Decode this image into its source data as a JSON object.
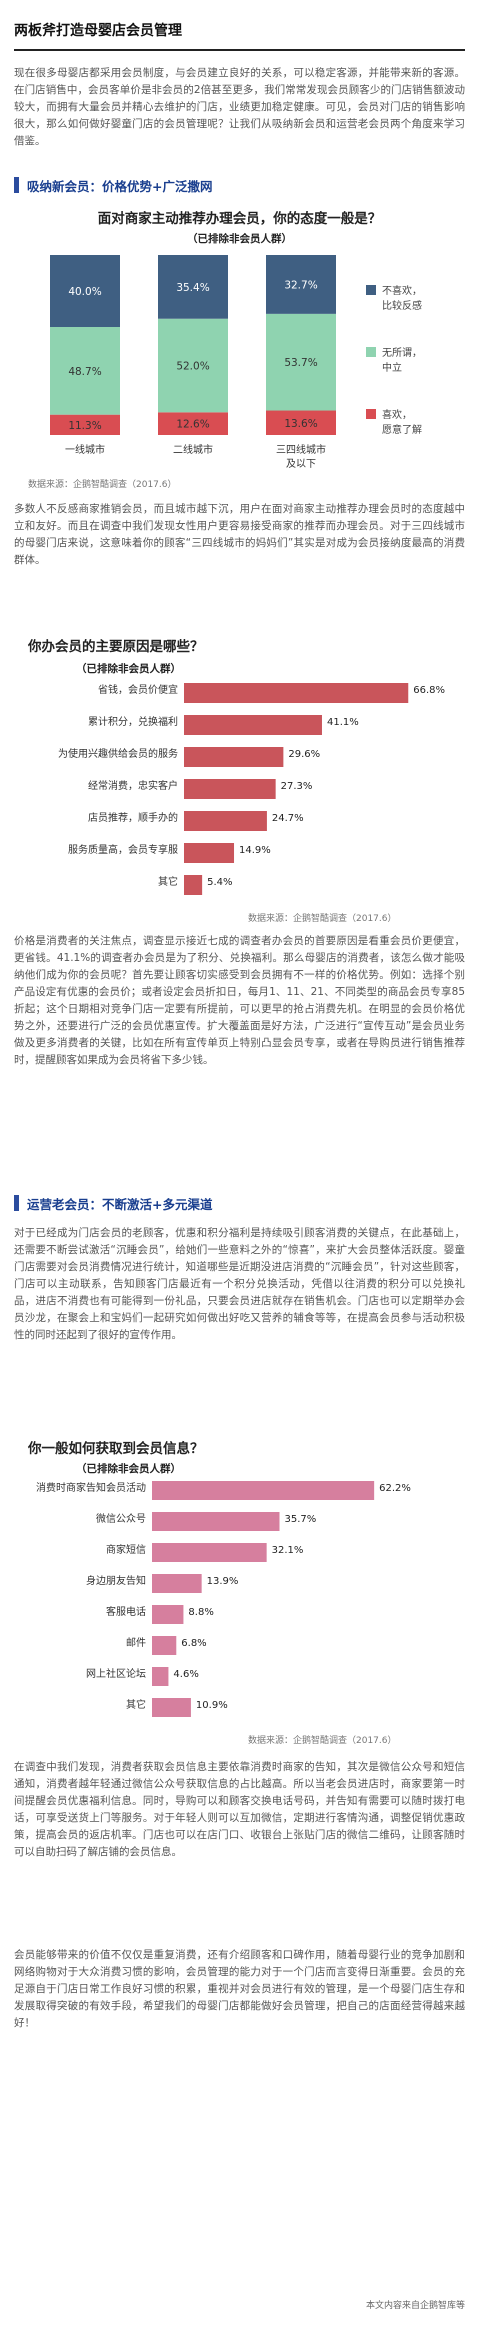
{
  "article": {
    "title": "两板斧打造母婴店会员管理",
    "intro": "现在很多母婴店都采用会员制度，与会员建立良好的关系，可以稳定客源，并能带来新的客源。在门店销售中，会员客单价是非会员的2倍甚至更多，我们常常发现会员顾客少的门店销售额波动较大，而拥有大量会员并精心去维护的门店，业绩更加稳定健康。可见，会员对门店的销售影响很大，那么如何做好婴童门店的会员管理呢？让我们从吸纳新会员和运营老会员两个角度来学习借鉴。"
  },
  "section1": {
    "heading": "吸纳新会员：价格优势+广泛撒网"
  },
  "chart1": {
    "title": "面对商家主动推荐办理会员，你的态度一般是？",
    "subtitle": "（已排除非会员人群）",
    "source": "数据来源：企鹅智酷调查（2017.6）",
    "legend": [
      "不喜欢，比较反感",
      "无所谓，中立",
      "喜欢，愿意了解"
    ],
    "colors": [
      "#3f5f82",
      "#8fd3b0",
      "#d94d52"
    ]
  },
  "para1": "多数人不反感商家推销会员，而且城市越下沉，用户在面对商家主动推荐办理会员时的态度越中立和友好。而且在调查中我们发现女性用户更容易接受商家的推荐而办理会员。对于三四线城市的母婴门店来说，这意味着你的顾客“三四线城市的妈妈们”其实是对成为会员接纳度最高的消费群体。",
  "chart2": {
    "title": "你办会员的主要原因是哪些？",
    "subtitle": "（已排除非会员人群）",
    "source": "数据来源：企鹅智酷调查（2017.6）",
    "color": "#c9555b"
  },
  "para2": "价格是消费者的关注焦点，调查显示接近七成的调查者办会员的首要原因是看重会员价更便宜，更省钱。41.1%的调查者办会员是为了积分、兑换福利。那么母婴店的消费者，该怎么做才能吸纳他们成为你的会员呢？首先要让顾客切实感受到会员拥有不一样的价格优势。例如：选择个别产品设定有优惠的会员价；或者设定会员折扣日，每月1、11、21、不同类型的商品会员专享85折起；这个日期相对竞争门店一定要有所提前，可以更早的抢占消费先机。在明显的会员价格优势之外，还要进行广泛的会员优惠宣传。扩大覆盖面是好方法，广泛进行“宣传互动”是会员业务做及更多消费者的关键，比如在所有宣传单页上特别凸显会员专享，或者在导购员进行销售推荐时，提醒顾客如果成为会员将省下多少钱。",
  "section2": {
    "heading": "运营老会员：不断激活+多元渠道"
  },
  "para3": "对于已经成为门店会员的老顾客，优惠和积分福利是持续吸引顾客消费的关键点，在此基础上，还需要不断尝试激活“沉睡会员”，给她们一些意料之外的“惊喜”，来扩大会员整体活跃度。婴童门店需要对会员消费情况进行统计，知道哪些是近期没进店消费的“沉睡会员”，针对这些顾客，门店可以主动联系，告知顾客门店最近有一个积分兑换活动，凭借以往消费的积分可以兑换礼品，进店不消费也有可能得到一份礼品，只要会员进店就存在销售机会。门店也可以定期举办会员沙龙，在聚会上和宝妈们一起研究如何做出好吃又营养的辅食等等，在提高会员参与活动积极性的同时还起到了很好的宣传作用。",
  "chart3": {
    "title": "你一般如何获取到会员信息？",
    "subtitle": "（已排除非会员人群）",
    "source": "数据来源：企鹅智酷调查（2017.6）",
    "color": "#d67f9e"
  },
  "para4": "在调查中我们发现，消费者获取会员信息主要依靠消费时商家的告知，其次是微信公众号和短信通知，消费者越年轻通过微信公众号获取信息的占比越高。所以当老会员进店时，商家要第一时间提醒会员优惠福利信息。同时，导购可以和顾客交换电话号码，并告知有需要可以随时拨打电话，可享受送货上门等服务。对于年轻人则可以互加微信，定期进行客情沟通，调整促销优惠政策，提高会员的返店机率。门店也可以在店门口、收银台上张贴门店的微信二维码，让顾客随时可以自助扫码了解店铺的会员信息。",
  "para5": "会员能够带来的价值不仅仅是重复消费，还有介绍顾客和口碑作用，随着母婴行业的竞争加剧和网络购物对于大众消费习惯的影响，会员管理的能力对于一个门店而言变得日渐重要。会员的充足源自于门店日常工作良好习惯的积累，重视并对会员进行有效的管理，是一个母婴门店生存和发展取得突破的有效手段，希望我们的母婴门店都能做好会员管理，把自己的店面经营得越来越好！",
  "footer": "本文内容来自企鹅智库等",
  "chart_data": [
    {
      "type": "bar",
      "stacked": true,
      "title": "面对商家主动推荐办理会员，你的态度一般是？",
      "subtitle": "（已排除非会员人群）",
      "categories": [
        "一线城市",
        "二线城市",
        "三四线城市及以下"
      ],
      "series": [
        {
          "name": "喜欢，愿意了解",
          "values": [
            11.3,
            12.6,
            13.6
          ],
          "color": "#d94d52"
        },
        {
          "name": "无所谓，中立",
          "values": [
            48.7,
            52.0,
            53.7
          ],
          "color": "#8fd3b0"
        },
        {
          "name": "不喜欢，比较反感",
          "values": [
            40.0,
            35.4,
            32.7
          ],
          "color": "#3f5f82"
        }
      ],
      "ylim": [
        0,
        100
      ],
      "legend": "right",
      "labels": [
        "11.3%",
        "12.6%",
        "13.6%",
        "48.7%",
        "52.0%",
        "53.7%",
        "40.0%",
        "35.4%",
        "32.7%"
      ]
    },
    {
      "type": "bar",
      "orientation": "horizontal",
      "title": "你办会员的主要原因是哪些？",
      "subtitle": "（已排除非会员人群）",
      "categories": [
        "省钱，会员价便宜",
        "累计积分，兑换福利",
        "为使用兴趣供给会员的服务",
        "经常消费，忠实客户",
        "店员推荐，顺手办的",
        "服务质量高，会员专享服",
        "其它"
      ],
      "values": [
        66.8,
        41.1,
        29.6,
        27.3,
        24.7,
        14.9,
        5.4
      ],
      "labels": [
        "66.8%",
        "41.1%",
        "29.6%",
        "27.3%",
        "24.7%",
        "14.9%",
        "5.4%"
      ],
      "xlim": [
        0,
        70
      ],
      "grid": false
    },
    {
      "type": "bar",
      "orientation": "horizontal",
      "title": "你一般如何获取到会员信息？",
      "subtitle": "（已排除非会员人群）",
      "categories": [
        "消费时商家告知会员活动",
        "微信公众号",
        "商家短信",
        "身边朋友告知",
        "客服电话",
        "邮件",
        "网上社区论坛",
        "其它"
      ],
      "values": [
        62.2,
        35.7,
        32.1,
        13.9,
        8.8,
        6.8,
        4.6,
        10.9
      ],
      "labels": [
        "62.2%",
        "35.7%",
        "32.1%",
        "13.9%",
        "8.8%",
        "6.8%",
        "4.6%",
        "10.9%"
      ],
      "xlim": [
        0,
        70
      ],
      "grid": false
    }
  ]
}
